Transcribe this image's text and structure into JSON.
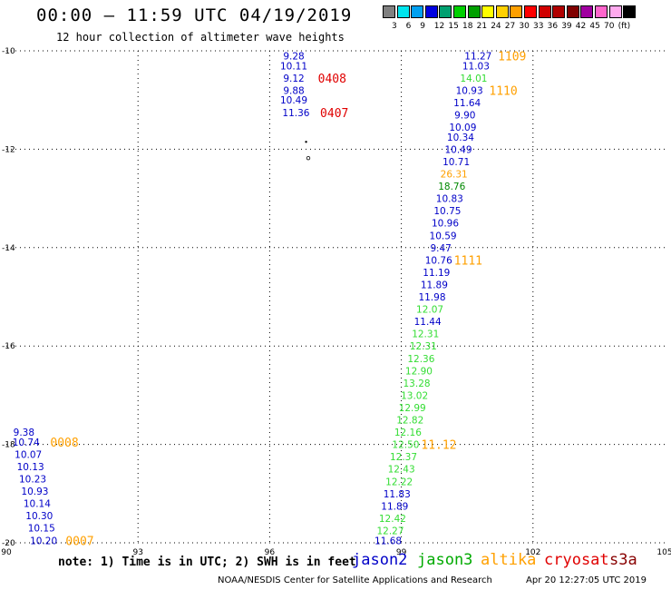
{
  "header": {
    "title": "00:00 – 11:59 UTC 04/19/2019",
    "subtitle": "12 hour collection of altimeter wave heights"
  },
  "legend": {
    "colors": [
      "#808080",
      "#00e5ee",
      "#00a0f0",
      "#0000e0",
      "#00a070",
      "#00d000",
      "#00a000",
      "#ffff00",
      "#ffd000",
      "#ffa000",
      "#ff0000",
      "#d00000",
      "#b00000",
      "#800000",
      "#a000a0",
      "#ff66cc",
      "#ffaaee",
      "#000000"
    ],
    "labels": [
      "3",
      "6",
      "9",
      "12",
      "15",
      "18",
      "21",
      "24",
      "27",
      "30",
      "33",
      "36",
      "39",
      "42",
      "45",
      "70",
      "(ft)"
    ]
  },
  "chart_data": {
    "type": "scatter",
    "x_ticks": [
      "90",
      "93",
      "96",
      "99",
      "102",
      "105"
    ],
    "y_ticks": [
      "-10",
      "-12",
      "-14",
      "-16",
      "-18",
      "-20"
    ],
    "xlim": [
      90,
      105
    ],
    "ylim": [
      -20,
      -10
    ],
    "grid": true,
    "points": [
      {
        "lon": 96.55,
        "lat": -10.1,
        "value": "9.28",
        "color": "#0000c8"
      },
      {
        "lon": 96.55,
        "lat": -10.3,
        "value": "10.11",
        "color": "#0000c8"
      },
      {
        "lon": 96.55,
        "lat": -10.55,
        "value": "9.12",
        "color": "#0000c8"
      },
      {
        "lon": 96.55,
        "lat": -10.8,
        "value": "9.88",
        "color": "#0000c8"
      },
      {
        "lon": 96.55,
        "lat": -11.0,
        "value": "10.49",
        "color": "#0000c8"
      },
      {
        "lon": 96.6,
        "lat": -11.25,
        "value": "11.36",
        "color": "#0000c8"
      },
      {
        "lon": 100.75,
        "lat": -10.1,
        "value": "11.27",
        "color": "#0000c8"
      },
      {
        "lon": 100.7,
        "lat": -10.3,
        "value": "11.03",
        "color": "#0000c8"
      },
      {
        "lon": 100.65,
        "lat": -10.55,
        "value": "14.01",
        "color": "#33dd33"
      },
      {
        "lon": 100.55,
        "lat": -10.8,
        "value": "10.93",
        "color": "#0000c8"
      },
      {
        "lon": 100.5,
        "lat": -11.05,
        "value": "11.64",
        "color": "#0000c8"
      },
      {
        "lon": 100.45,
        "lat": -11.3,
        "value": "9.90",
        "color": "#0000c8"
      },
      {
        "lon": 100.4,
        "lat": -11.55,
        "value": "10.09",
        "color": "#0000c8"
      },
      {
        "lon": 100.35,
        "lat": -11.75,
        "value": "10.34",
        "color": "#0000c8"
      },
      {
        "lon": 100.3,
        "lat": -12.0,
        "value": "10.49",
        "color": "#0000c8"
      },
      {
        "lon": 100.25,
        "lat": -12.25,
        "value": "10.71",
        "color": "#0000c8"
      },
      {
        "lon": 100.2,
        "lat": -12.5,
        "value": "26.31",
        "color": "#ffa000"
      },
      {
        "lon": 100.15,
        "lat": -12.75,
        "value": "18.76",
        "color": "#008800"
      },
      {
        "lon": 100.1,
        "lat": -13.0,
        "value": "10.83",
        "color": "#0000c8"
      },
      {
        "lon": 100.05,
        "lat": -13.25,
        "value": "10.75",
        "color": "#0000c8"
      },
      {
        "lon": 100.0,
        "lat": -13.5,
        "value": "10.96",
        "color": "#0000c8"
      },
      {
        "lon": 99.95,
        "lat": -13.75,
        "value": "10.59",
        "color": "#0000c8"
      },
      {
        "lon": 99.9,
        "lat": -14.0,
        "value": "9.47",
        "color": "#0000c8"
      },
      {
        "lon": 99.85,
        "lat": -14.25,
        "value": "10.76",
        "color": "#0000c8"
      },
      {
        "lon": 99.8,
        "lat": -14.5,
        "value": "11.19",
        "color": "#0000c8"
      },
      {
        "lon": 99.75,
        "lat": -14.75,
        "value": "11.89",
        "color": "#0000c8"
      },
      {
        "lon": 99.7,
        "lat": -15.0,
        "value": "11.98",
        "color": "#0000c8"
      },
      {
        "lon": 99.65,
        "lat": -15.25,
        "value": "12.07",
        "color": "#33dd33"
      },
      {
        "lon": 99.6,
        "lat": -15.5,
        "value": "11.44",
        "color": "#0000c8"
      },
      {
        "lon": 99.55,
        "lat": -15.75,
        "value": "12.31",
        "color": "#33dd33"
      },
      {
        "lon": 99.5,
        "lat": -16.0,
        "value": "12.31",
        "color": "#33dd33"
      },
      {
        "lon": 99.45,
        "lat": -16.25,
        "value": "12.36",
        "color": "#33dd33"
      },
      {
        "lon": 99.4,
        "lat": -16.5,
        "value": "12.90",
        "color": "#33dd33"
      },
      {
        "lon": 99.35,
        "lat": -16.75,
        "value": "13.28",
        "color": "#33dd33"
      },
      {
        "lon": 99.3,
        "lat": -17.0,
        "value": "13.02",
        "color": "#33dd33"
      },
      {
        "lon": 99.25,
        "lat": -17.25,
        "value": "12.99",
        "color": "#33dd33"
      },
      {
        "lon": 99.2,
        "lat": -17.5,
        "value": "12.82",
        "color": "#33dd33"
      },
      {
        "lon": 99.15,
        "lat": -17.75,
        "value": "12.16",
        "color": "#33dd33"
      },
      {
        "lon": 99.1,
        "lat": -18.0,
        "value": "12.50",
        "color": "#33dd33"
      },
      {
        "lon": 99.05,
        "lat": -18.25,
        "value": "12.37",
        "color": "#33dd33"
      },
      {
        "lon": 99.0,
        "lat": -18.5,
        "value": "12.43",
        "color": "#33dd33"
      },
      {
        "lon": 98.95,
        "lat": -18.75,
        "value": "12.22",
        "color": "#33dd33"
      },
      {
        "lon": 98.9,
        "lat": -19.0,
        "value": "11.83",
        "color": "#0000c8"
      },
      {
        "lon": 98.85,
        "lat": -19.25,
        "value": "11.89",
        "color": "#0000c8"
      },
      {
        "lon": 98.8,
        "lat": -19.5,
        "value": "12.42",
        "color": "#33dd33"
      },
      {
        "lon": 98.75,
        "lat": -19.75,
        "value": "12.27",
        "color": "#33dd33"
      },
      {
        "lon": 98.7,
        "lat": -19.95,
        "value": "11.68",
        "color": "#0000c8"
      },
      {
        "lon": 90.4,
        "lat": -17.75,
        "value": "9.38",
        "color": "#0000c8"
      },
      {
        "lon": 90.45,
        "lat": -17.95,
        "value": "10.74",
        "color": "#0000c8"
      },
      {
        "lon": 90.5,
        "lat": -18.2,
        "value": "10.07",
        "color": "#0000c8"
      },
      {
        "lon": 90.55,
        "lat": -18.45,
        "value": "10.13",
        "color": "#0000c8"
      },
      {
        "lon": 90.6,
        "lat": -18.7,
        "value": "10.23",
        "color": "#0000c8"
      },
      {
        "lon": 90.65,
        "lat": -18.95,
        "value": "10.93",
        "color": "#0000c8"
      },
      {
        "lon": 90.7,
        "lat": -19.2,
        "value": "10.14",
        "color": "#0000c8"
      },
      {
        "lon": 90.75,
        "lat": -19.45,
        "value": "10.30",
        "color": "#0000c8"
      },
      {
        "lon": 90.8,
        "lat": -19.7,
        "value": "10.15",
        "color": "#0000c8"
      },
      {
        "lon": 90.85,
        "lat": -19.95,
        "value": "10.20",
        "color": "#0000c8"
      }
    ],
    "time_labels": [
      {
        "lon": 97.1,
        "lat": -10.55,
        "text": "0408",
        "color": "#e00000"
      },
      {
        "lon": 97.15,
        "lat": -11.25,
        "text": "0407",
        "color": "#e00000"
      },
      {
        "lon": 101.2,
        "lat": -10.1,
        "text": "1109",
        "color": "#ffa000"
      },
      {
        "lon": 101.0,
        "lat": -10.8,
        "text": "1110",
        "color": "#ffa000"
      },
      {
        "lon": 100.2,
        "lat": -14.25,
        "text": "1111",
        "color": "#ffa000"
      },
      {
        "lon": 99.45,
        "lat": -18.0,
        "text": "11.12",
        "color": "#ffa000"
      },
      {
        "lon": 91.0,
        "lat": -17.95,
        "text": "0008",
        "color": "#ffa000"
      },
      {
        "lon": 91.35,
        "lat": -19.95,
        "text": "0007",
        "color": "#ffa000"
      }
    ]
  },
  "footer": {
    "note": "note: 1) Time is in UTC; 2) SWH is in feet",
    "satellites": [
      {
        "name": "jason2",
        "color": "#0000c8"
      },
      {
        "name": "jason3",
        "color": "#00aa00"
      },
      {
        "name": "altika",
        "color": "#ffa000"
      },
      {
        "name": "cryosat",
        "color": "#e00000"
      },
      {
        "name": "s3a",
        "color": "#880000"
      }
    ],
    "credit": "NOAA/NESDIS Center for Satellite Applications and Research",
    "stamp": "Apr 20 12:27:05 UTC 2019"
  }
}
